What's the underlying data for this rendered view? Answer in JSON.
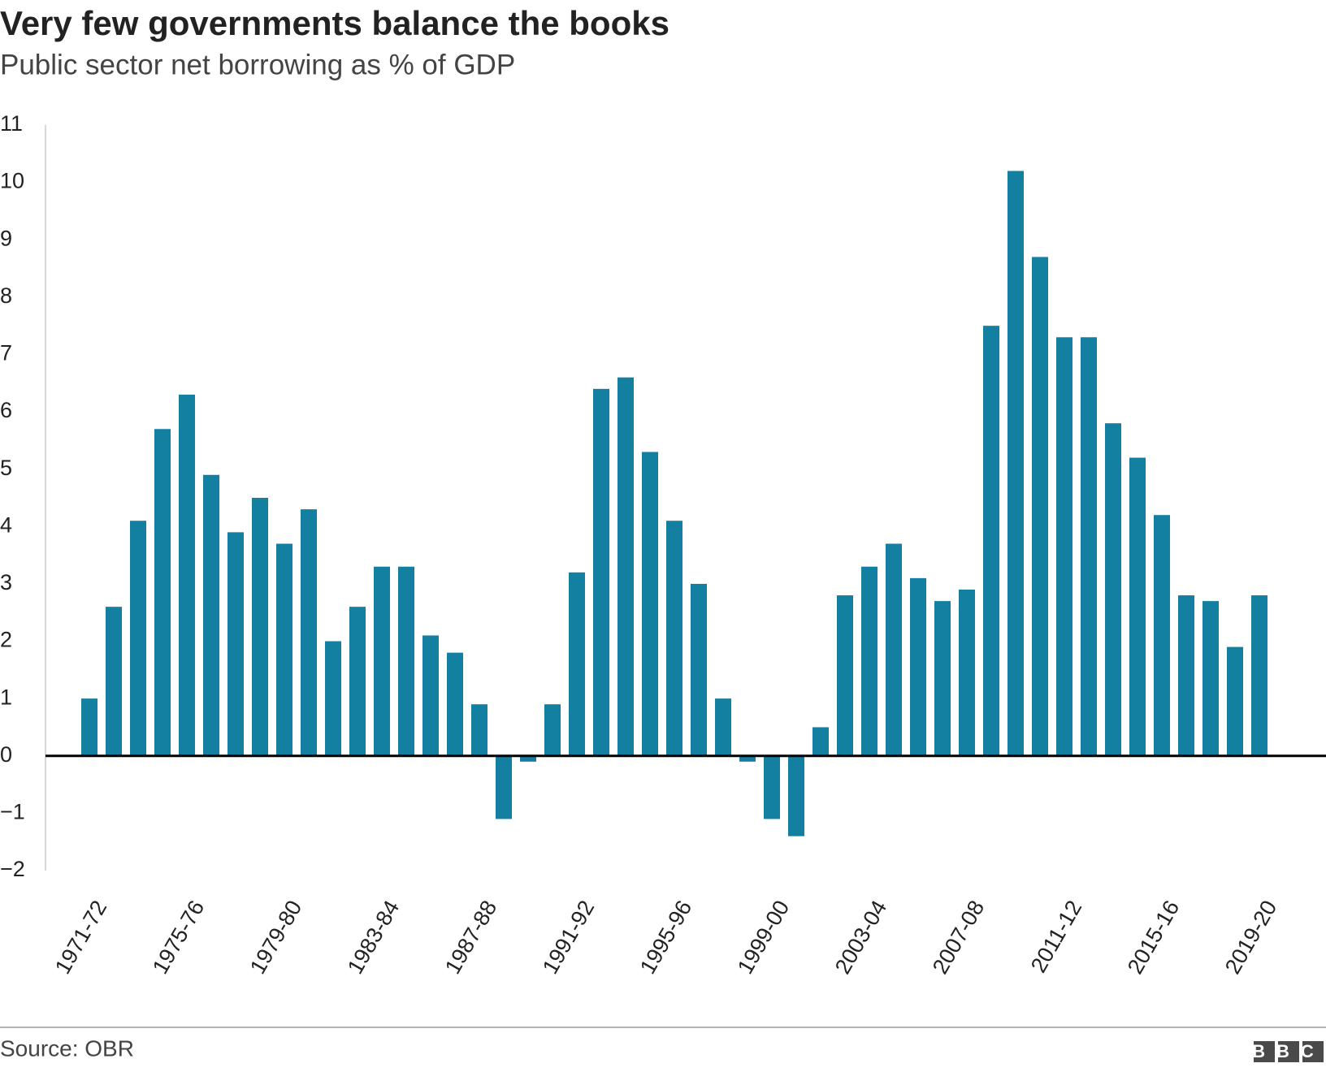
{
  "chart_data": {
    "type": "bar",
    "title": "Very few governments balance the books",
    "subtitle": "Public sector net borrowing as % of GDP",
    "source": "Source: OBR",
    "logo": "BBC",
    "categories": [
      "1971-72",
      null,
      null,
      null,
      "1975-76",
      null,
      null,
      null,
      "1979-80",
      null,
      null,
      null,
      "1983-84",
      null,
      null,
      null,
      "1987-88",
      null,
      null,
      null,
      "1991-92",
      null,
      null,
      null,
      "1995-96",
      null,
      null,
      null,
      "1999-00",
      null,
      null,
      null,
      "2003-04",
      null,
      null,
      null,
      "2007-08",
      null,
      null,
      null,
      "2011-12",
      null,
      null,
      null,
      "2015-16",
      null,
      null,
      null,
      "2019-20"
    ],
    "values": [
      1.0,
      2.6,
      4.1,
      5.7,
      6.3,
      4.9,
      3.9,
      4.5,
      3.7,
      4.3,
      2.0,
      2.6,
      3.3,
      3.3,
      2.1,
      1.8,
      0.9,
      -1.1,
      -0.1,
      0.9,
      3.2,
      6.4,
      6.6,
      5.3,
      4.1,
      3.0,
      1.0,
      -0.1,
      -1.1,
      -1.4,
      0.5,
      2.8,
      3.3,
      3.7,
      3.1,
      2.7,
      2.9,
      7.5,
      10.2,
      8.7,
      7.3,
      7.3,
      5.8,
      5.2,
      4.2,
      2.8,
      2.7,
      1.9,
      2.8
    ],
    "color": "#1380a1",
    "ylim": [
      -2,
      11
    ],
    "yticks": [
      {
        "value": -2,
        "label": "−2"
      },
      {
        "value": -1,
        "label": "−1"
      },
      0,
      1,
      2,
      3,
      4,
      5,
      6,
      7,
      8,
      9,
      10,
      11
    ],
    "grid": false
  }
}
